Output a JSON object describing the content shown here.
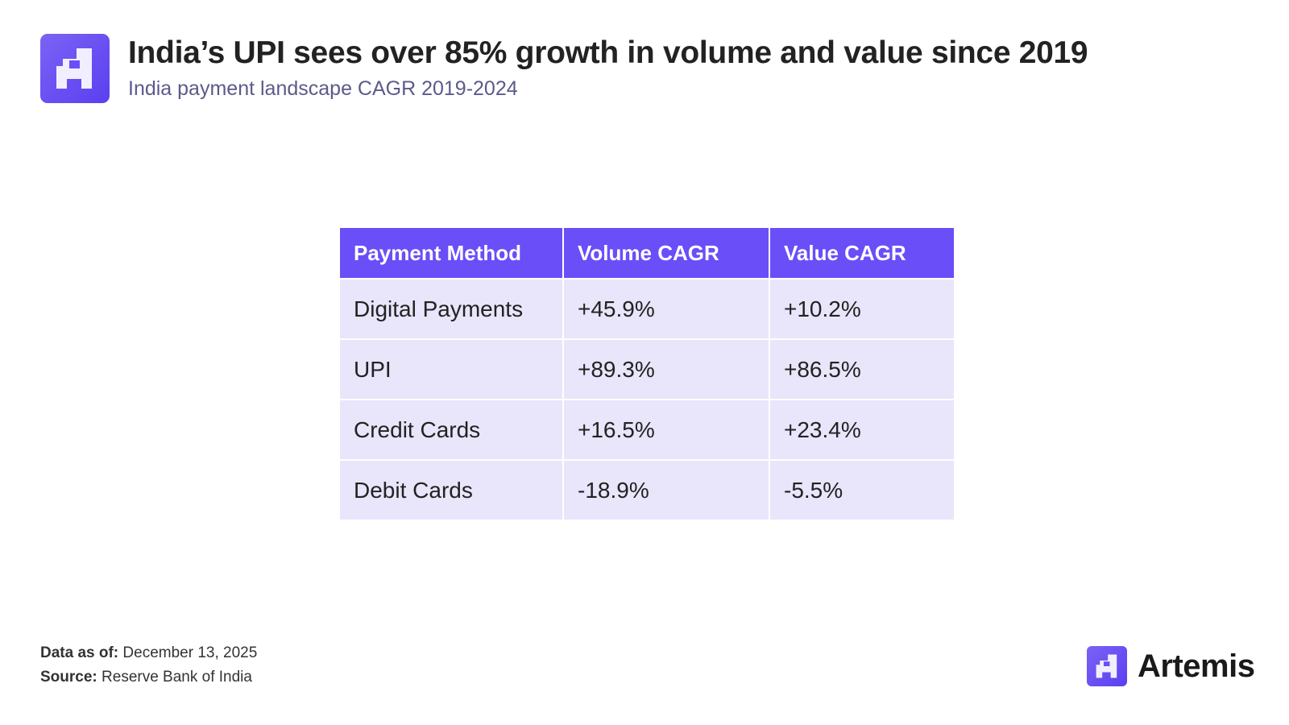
{
  "header": {
    "title": "India’s UPI sees over 85% growth in volume and value since 2019",
    "subtitle": "India payment landscape CAGR 2019-2024",
    "logo_icon": "artemis-logo-icon"
  },
  "chart_data": {
    "type": "table",
    "columns": [
      "Payment Method",
      "Volume CAGR",
      "Value CAGR"
    ],
    "rows": [
      [
        "Digital Payments",
        "+45.9%",
        "+10.2%"
      ],
      [
        "UPI",
        "+89.3%",
        "+86.5%"
      ],
      [
        "Credit Cards",
        "+16.5%",
        "+23.4%"
      ],
      [
        "Debit Cards",
        "-18.9%",
        "-5.5%"
      ]
    ]
  },
  "footer": {
    "date_label": "Data as of:",
    "date_value": "December 13, 2025",
    "source_label": "Source:",
    "source_value": "Reserve Bank of India",
    "brand": "Artemis"
  },
  "colors": {
    "accent": "#6a4ef8",
    "row_bg": "#e9e5fb",
    "subtitle": "#5b5a8a"
  }
}
